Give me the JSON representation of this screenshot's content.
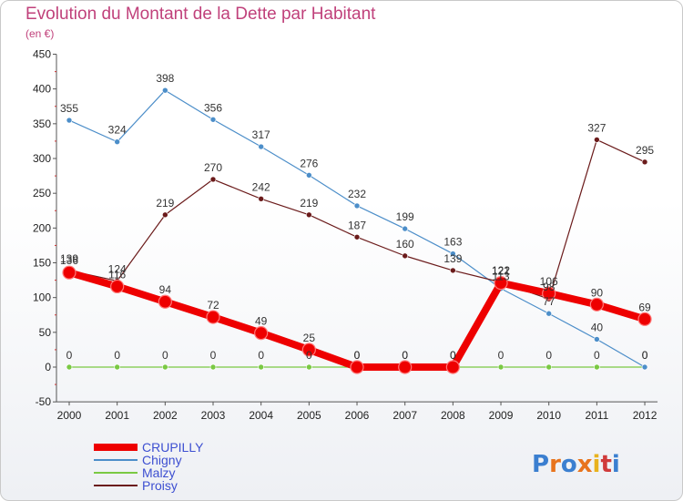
{
  "title": "Evolution du Montant de la Dette par Habitant",
  "subtitle": "(en €)",
  "brand": "Proxiti",
  "chart_data": {
    "type": "line",
    "x": [
      2000,
      2001,
      2002,
      2003,
      2004,
      2005,
      2006,
      2007,
      2008,
      2009,
      2010,
      2011,
      2012
    ],
    "ylim": [
      -50,
      450
    ],
    "yticks": [
      -50,
      0,
      50,
      100,
      150,
      200,
      250,
      300,
      350,
      400,
      450
    ],
    "legend_position": "bottom-left",
    "grid": false,
    "series": [
      {
        "name": "CRUPILLY",
        "color": "#ee0000",
        "width": 8,
        "marker": 7,
        "values": [
          136,
          116,
          94,
          72,
          49,
          25,
          0,
          0,
          0,
          121,
          106,
          90,
          69
        ]
      },
      {
        "name": "Chigny",
        "color": "#4c8ec9",
        "width": 1.2,
        "marker": 3,
        "values": [
          355,
          324,
          398,
          356,
          317,
          276,
          232,
          199,
          163,
          113,
          77,
          40,
          0
        ]
      },
      {
        "name": "Malzy",
        "color": "#7ac943",
        "width": 1.2,
        "marker": 3,
        "values": [
          0,
          0,
          0,
          0,
          0,
          0,
          0,
          0,
          0,
          0,
          0,
          0,
          0
        ]
      },
      {
        "name": "Proisy",
        "color": "#6b1b1b",
        "width": 1.2,
        "marker": 3,
        "values": [
          139,
          124,
          219,
          270,
          242,
          219,
          187,
          160,
          139,
          122,
          98,
          327,
          295
        ]
      }
    ]
  }
}
